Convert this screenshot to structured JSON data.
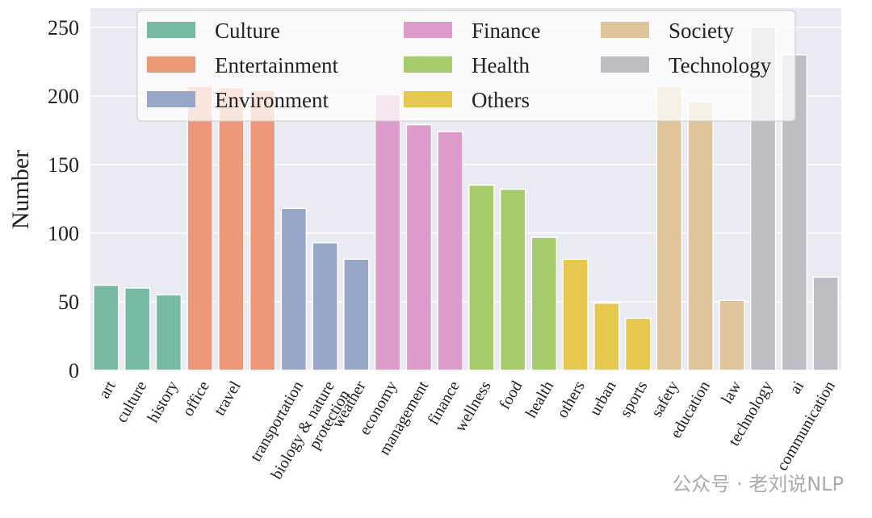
{
  "chart_data": {
    "type": "bar",
    "ylabel": "Number",
    "categories": [
      "art",
      "culture",
      "history",
      "office",
      "travel",
      null,
      "transportation",
      "biology & nature protection",
      "weather",
      "economy",
      "management",
      "finance",
      "wellness",
      "food",
      "health",
      "others",
      "urban",
      "sports",
      "safety",
      "education",
      "law",
      "technology",
      "ai",
      "communication"
    ],
    "values": [
      62,
      60,
      55,
      207,
      206,
      204,
      118,
      93,
      81,
      201,
      179,
      174,
      135,
      132,
      97,
      81,
      49,
      38,
      207,
      196,
      51,
      250,
      230,
      68
    ],
    "bar_colors": [
      "#77b9a3",
      "#77b9a3",
      "#77b9a3",
      "#ec9778",
      "#ec9778",
      "#ec9778",
      "#98a7c7",
      "#98a7c7",
      "#98a7c7",
      "#dc9bc8",
      "#dc9bc8",
      "#dc9bc8",
      "#a6cb6b",
      "#a6cb6b",
      "#a6cb6b",
      "#e6c84f",
      "#e6c84f",
      "#e6c84f",
      "#dfc49c",
      "#dfc49c",
      "#dfc49c",
      "#bdbec3",
      "#bdbec3",
      "#bdbec3"
    ],
    "legend": [
      {
        "name": "Culture",
        "color": "#77b9a3"
      },
      {
        "name": "Entertainment",
        "color": "#ec9778"
      },
      {
        "name": "Environment",
        "color": "#98a7c7"
      },
      {
        "name": "Finance",
        "color": "#dc9bc8"
      },
      {
        "name": "Health",
        "color": "#a6cb6b"
      },
      {
        "name": "Others",
        "color": "#e6c84f"
      },
      {
        "name": "Society",
        "color": "#dfc49c"
      },
      {
        "name": "Technology",
        "color": "#bdbec3"
      }
    ],
    "ylim": [
      0,
      264
    ],
    "yticks": [
      0,
      50,
      100,
      150,
      200,
      250
    ],
    "grid": true,
    "watermark": "公众号 · 老刘说NLP"
  }
}
